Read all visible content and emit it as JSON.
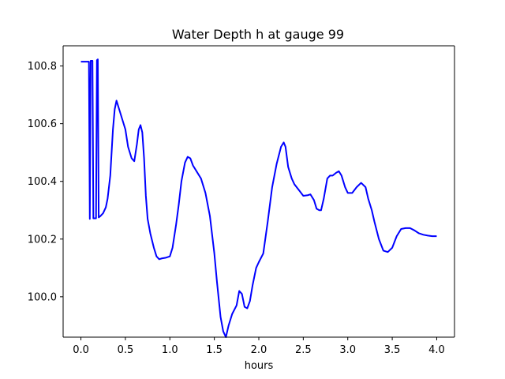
{
  "chart_data": {
    "type": "line",
    "title": "Water Depth h at gauge 99",
    "xlabel": "hours",
    "ylabel": "",
    "xlim": [
      -0.2,
      4.2
    ],
    "ylim": [
      99.86,
      100.87
    ],
    "x_ticks": [
      0.0,
      0.5,
      1.0,
      1.5,
      2.0,
      2.5,
      3.0,
      3.5,
      4.0
    ],
    "x_tick_labels": [
      "0.0",
      "0.5",
      "1.0",
      "1.5",
      "2.0",
      "2.5",
      "3.0",
      "3.5",
      "4.0"
    ],
    "y_ticks": [
      100.0,
      100.2,
      100.4,
      100.6,
      100.8
    ],
    "y_tick_labels": [
      "100.0",
      "100.2",
      "100.4",
      "100.6",
      "100.8"
    ],
    "grid": false,
    "line_color": "#0000ff",
    "series": [
      {
        "name": "h",
        "color": "#0000ff",
        "x": [
          0.0,
          0.08,
          0.09,
          0.1,
          0.11,
          0.12,
          0.13,
          0.14,
          0.15,
          0.16,
          0.17,
          0.18,
          0.19,
          0.2,
          0.22,
          0.25,
          0.28,
          0.3,
          0.33,
          0.36,
          0.38,
          0.4,
          0.43,
          0.47,
          0.5,
          0.53,
          0.57,
          0.6,
          0.63,
          0.65,
          0.67,
          0.69,
          0.71,
          0.73,
          0.75,
          0.78,
          0.82,
          0.85,
          0.88,
          0.91,
          0.95,
          1.0,
          1.03,
          1.07,
          1.1,
          1.13,
          1.17,
          1.2,
          1.23,
          1.26,
          1.3,
          1.35,
          1.4,
          1.45,
          1.5,
          1.53,
          1.57,
          1.6,
          1.63,
          1.66,
          1.7,
          1.75,
          1.78,
          1.81,
          1.84,
          1.87,
          1.9,
          1.93,
          1.97,
          2.0,
          2.05,
          2.1,
          2.15,
          2.2,
          2.25,
          2.28,
          2.3,
          2.33,
          2.37,
          2.4,
          2.45,
          2.5,
          2.55,
          2.58,
          2.62,
          2.65,
          2.68,
          2.7,
          2.73,
          2.77,
          2.8,
          2.83,
          2.87,
          2.9,
          2.93,
          2.97,
          3.0,
          3.05,
          3.1,
          3.15,
          3.2,
          3.23,
          3.27,
          3.3,
          3.35,
          3.4,
          3.45,
          3.5,
          3.55,
          3.6,
          3.65,
          3.7,
          3.75,
          3.8,
          3.85,
          3.9,
          3.95,
          4.0
        ],
        "values": [
          100.815,
          100.815,
          100.815,
          100.27,
          100.818,
          100.818,
          100.818,
          100.272,
          100.272,
          100.272,
          100.272,
          100.82,
          100.823,
          100.275,
          100.28,
          100.29,
          100.31,
          100.34,
          100.42,
          100.58,
          100.65,
          100.68,
          100.65,
          100.61,
          100.58,
          100.52,
          100.48,
          100.47,
          100.53,
          100.58,
          100.595,
          100.57,
          100.48,
          100.35,
          100.27,
          100.22,
          100.17,
          100.14,
          100.13,
          100.133,
          100.135,
          100.14,
          100.17,
          100.25,
          100.32,
          100.4,
          100.465,
          100.485,
          100.48,
          100.455,
          100.435,
          100.41,
          100.36,
          100.28,
          100.15,
          100.05,
          99.93,
          99.88,
          99.86,
          99.9,
          99.94,
          99.97,
          100.02,
          100.01,
          99.965,
          99.96,
          99.985,
          100.04,
          100.1,
          100.12,
          100.15,
          100.26,
          100.38,
          100.46,
          100.52,
          100.535,
          100.52,
          100.45,
          100.41,
          100.39,
          100.37,
          100.35,
          100.352,
          100.355,
          100.335,
          100.305,
          100.3,
          100.3,
          100.34,
          100.41,
          100.42,
          100.42,
          100.43,
          100.435,
          100.42,
          100.38,
          100.36,
          100.36,
          100.38,
          100.395,
          100.38,
          100.34,
          100.3,
          100.26,
          100.2,
          100.16,
          100.155,
          100.17,
          100.21,
          100.235,
          100.238,
          100.238,
          100.23,
          100.22,
          100.215,
          100.212,
          100.21,
          100.21
        ]
      }
    ]
  }
}
